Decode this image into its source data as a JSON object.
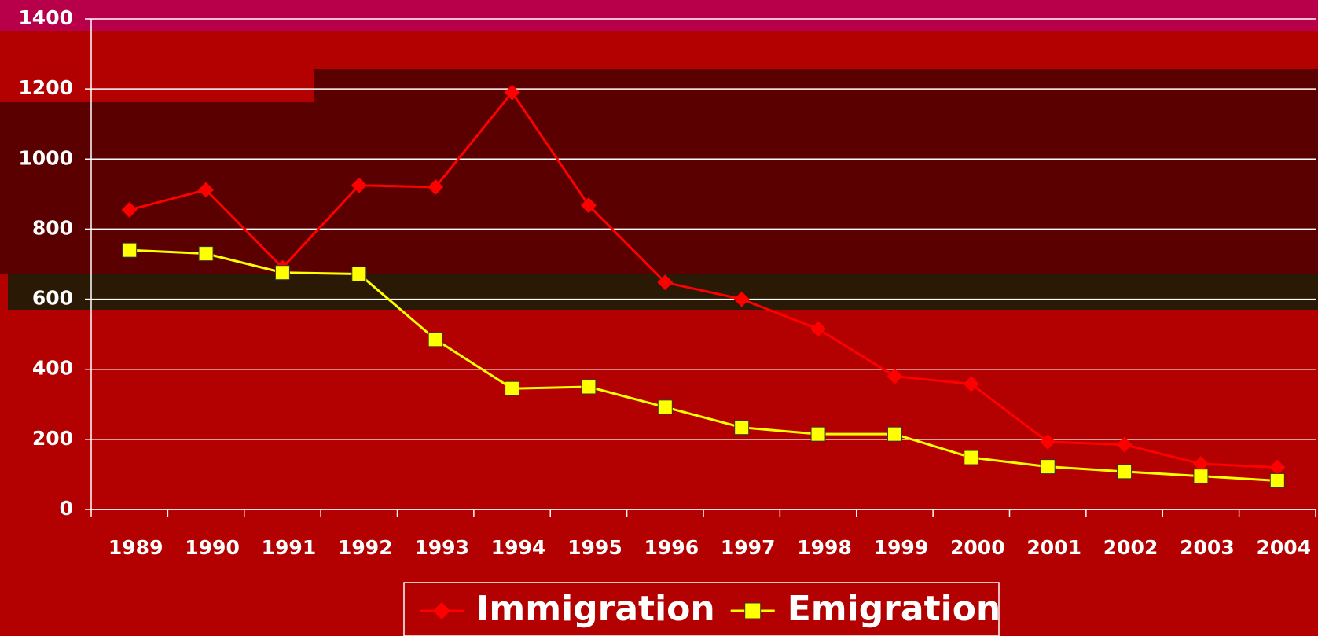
{
  "chart_data": {
    "type": "line",
    "categories": [
      "1989",
      "1990",
      "1991",
      "1992",
      "1993",
      "1994",
      "1995",
      "1996",
      "1997",
      "1998",
      "1999",
      "2000",
      "2001",
      "2002",
      "2003",
      "2004"
    ],
    "series": [
      {
        "name": "Immigration",
        "color": "#ff0000",
        "marker": "diamond",
        "values": [
          855,
          912,
          690,
          925,
          920,
          1190,
          868,
          648,
          600,
          515,
          380,
          358,
          193,
          185,
          130,
          120
        ]
      },
      {
        "name": "Emigration",
        "color": "#ffff00",
        "marker": "square",
        "values": [
          740,
          730,
          676,
          672,
          485,
          345,
          350,
          292,
          234,
          215,
          215,
          148,
          122,
          108,
          95,
          82
        ]
      }
    ],
    "ylim": [
      0,
      1400
    ],
    "yticks": [
      0,
      200,
      400,
      600,
      800,
      1000,
      1200,
      1400
    ],
    "grid": true,
    "legend": "bottom"
  }
}
